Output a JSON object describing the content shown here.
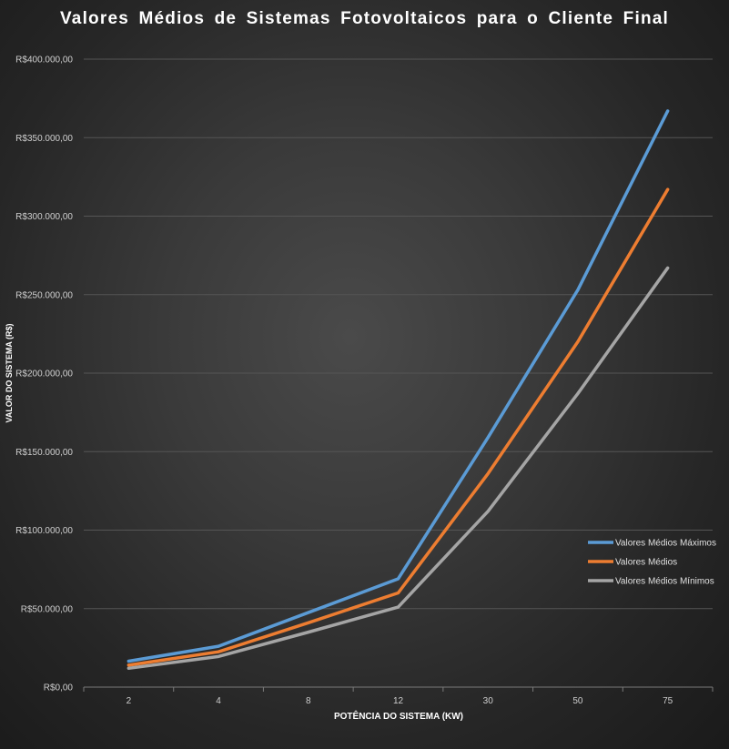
{
  "chart_data": {
    "type": "line",
    "title": "Valores  Médios  de  Sistemas  Fotovoltaicos  para  o  Cliente  Final",
    "xlabel": "POTÊNCIA DO SISTEMA (KW)",
    "ylabel": "VALOR DO SISTEMA (R$)",
    "categories": [
      "2",
      "4",
      "8",
      "12",
      "30",
      "50",
      "75"
    ],
    "y_ticks": [
      "R$0,00",
      "R$50.000,00",
      "R$100.000,00",
      "R$150.000,00",
      "R$200.000,00",
      "R$250.000,00",
      "R$300.000,00",
      "R$350.000,00",
      "R$400.000,00"
    ],
    "ylim": [
      0,
      400000
    ],
    "grid": true,
    "legend_position": "right",
    "series": [
      {
        "name": "Valores Médios Máximos",
        "color": "#5b9bd5",
        "values": [
          16500,
          26000,
          47500,
          69000,
          159000,
          253000,
          367000
        ]
      },
      {
        "name": "Valores Médios",
        "color": "#ed7d31",
        "values": [
          14000,
          22500,
          41000,
          60000,
          136000,
          220000,
          317000
        ]
      },
      {
        "name": "Valores Médios Mínimos",
        "color": "#a5a5a5",
        "values": [
          12000,
          19500,
          35000,
          51000,
          112000,
          187000,
          267000
        ]
      }
    ]
  }
}
